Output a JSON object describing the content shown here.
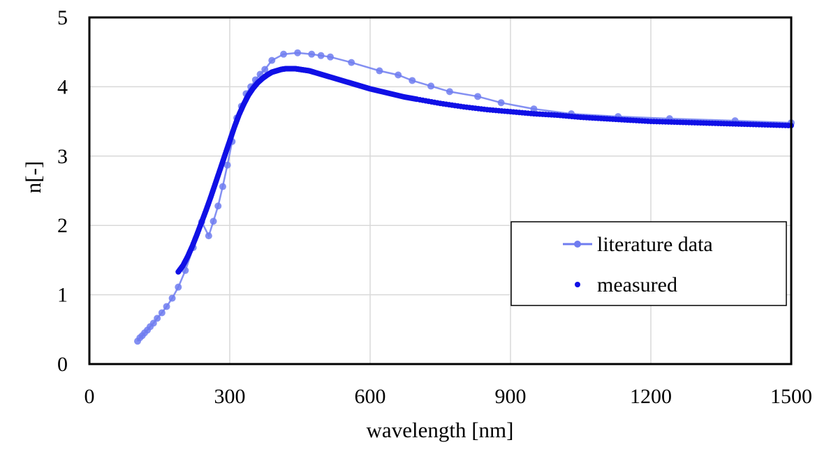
{
  "chart_data": {
    "type": "line",
    "xlabel": "wavelength [nm]",
    "ylabel": "n[-]",
    "xlim": [
      0,
      1500
    ],
    "ylim": [
      0,
      5
    ],
    "xticks": [
      "0",
      "300",
      "600",
      "900",
      "1200",
      "1500"
    ],
    "yticks": [
      "0",
      "1",
      "2",
      "3",
      "4",
      "5"
    ],
    "grid": true,
    "legend_position": "right-middle",
    "series": [
      {
        "name": "literature data",
        "style": "line+markers",
        "color": "#6f7cf0",
        "x": [
          103,
          108,
          113,
          118,
          124,
          130,
          137,
          145,
          155,
          165,
          177,
          190,
          205,
          222,
          240,
          255,
          265,
          275,
          285,
          295,
          305,
          315,
          325,
          335,
          345,
          355,
          365,
          375,
          390,
          415,
          445,
          475,
          495,
          515,
          560,
          620,
          660,
          690,
          730,
          770,
          830,
          880,
          950,
          1030,
          1130,
          1240,
          1380,
          1500
        ],
        "y": [
          0.33,
          0.38,
          0.41,
          0.45,
          0.49,
          0.54,
          0.59,
          0.66,
          0.74,
          0.83,
          0.95,
          1.11,
          1.35,
          1.68,
          2.05,
          1.85,
          2.06,
          2.28,
          2.56,
          2.87,
          3.21,
          3.55,
          3.72,
          3.9,
          4.0,
          4.1,
          4.18,
          4.25,
          4.38,
          4.47,
          4.49,
          4.47,
          4.45,
          4.43,
          4.35,
          4.23,
          4.17,
          4.09,
          4.01,
          3.93,
          3.86,
          3.77,
          3.68,
          3.61,
          3.57,
          3.54,
          3.51,
          3.48
        ]
      },
      {
        "name": "measured",
        "style": "markers",
        "color": "#1010e6",
        "x": [
          190,
          200,
          210,
          220,
          230,
          240,
          250,
          260,
          270,
          280,
          290,
          300,
          310,
          320,
          330,
          340,
          350,
          360,
          370,
          380,
          390,
          400,
          410,
          420,
          430,
          440,
          450,
          460,
          470,
          480,
          500,
          520,
          540,
          560,
          580,
          600,
          625,
          650,
          675,
          700,
          750,
          800,
          850,
          900,
          950,
          1000,
          1050,
          1100,
          1150,
          1200,
          1250,
          1300,
          1350,
          1400,
          1450,
          1500
        ],
        "y": [
          1.33,
          1.42,
          1.55,
          1.7,
          1.87,
          2.05,
          2.23,
          2.42,
          2.62,
          2.82,
          3.02,
          3.22,
          3.42,
          3.6,
          3.75,
          3.88,
          3.98,
          4.06,
          4.12,
          4.17,
          4.21,
          4.23,
          4.25,
          4.26,
          4.26,
          4.26,
          4.25,
          4.24,
          4.23,
          4.21,
          4.17,
          4.13,
          4.09,
          4.05,
          4.01,
          3.97,
          3.93,
          3.89,
          3.85,
          3.82,
          3.76,
          3.71,
          3.67,
          3.64,
          3.61,
          3.59,
          3.56,
          3.54,
          3.52,
          3.5,
          3.49,
          3.48,
          3.47,
          3.46,
          3.45,
          3.44
        ]
      }
    ]
  }
}
